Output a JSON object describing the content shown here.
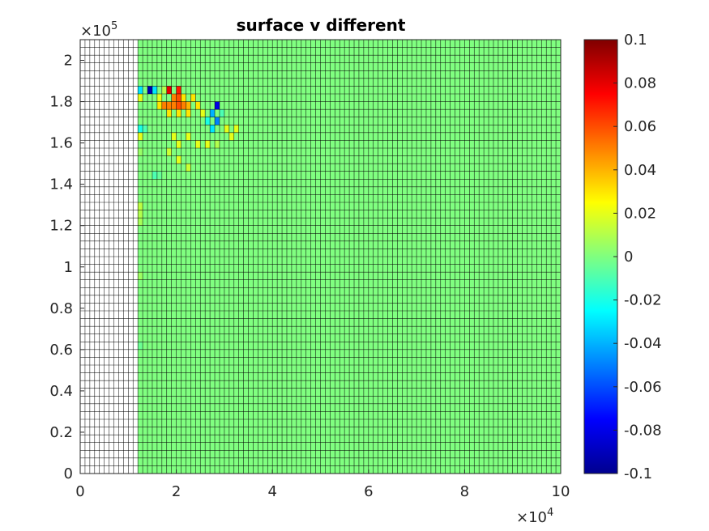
{
  "chart_data": {
    "type": "heatmap",
    "title": "surface v different",
    "xlabel": "",
    "ylabel": "",
    "x_exponent_label": "×10",
    "x_exponent": "4",
    "y_exponent_label": "×10",
    "y_exponent": "5",
    "xlim": [
      0,
      100000
    ],
    "ylim": [
      0,
      210000
    ],
    "x_ticks": [
      0,
      20000,
      40000,
      60000,
      80000,
      100000
    ],
    "x_tick_labels": [
      "0",
      "2",
      "4",
      "6",
      "8",
      "10"
    ],
    "y_ticks": [
      0,
      20000,
      40000,
      60000,
      80000,
      100000,
      120000,
      140000,
      160000,
      180000,
      200000
    ],
    "y_tick_labels": [
      "0",
      "0.2",
      "0.4",
      "0.6",
      "0.8",
      "1",
      "1.2",
      "1.4",
      "1.6",
      "1.8",
      "2"
    ],
    "grid": {
      "x_start": 0,
      "x_end": 100000,
      "x_cells": 100,
      "y_start": 0,
      "y_end": 210000,
      "y_cells": 56
    },
    "empty_region_x_max": 11000,
    "background_value": 0.0,
    "anomalies": [
      {
        "x": 14000,
        "y": 185000,
        "value": -0.09
      },
      {
        "x": 15000,
        "y": 187000,
        "value": -0.03
      },
      {
        "x": 16000,
        "y": 181000,
        "value": 0.02
      },
      {
        "x": 17000,
        "y": 186000,
        "value": 0.01
      },
      {
        "x": 18000,
        "y": 185000,
        "value": 0.08
      },
      {
        "x": 19000,
        "y": 181000,
        "value": 0.05
      },
      {
        "x": 20000,
        "y": 185000,
        "value": 0.07
      },
      {
        "x": 20000,
        "y": 181000,
        "value": 0.06
      },
      {
        "x": 20000,
        "y": 177000,
        "value": 0.06
      },
      {
        "x": 21000,
        "y": 181000,
        "value": 0.03
      },
      {
        "x": 22000,
        "y": 177000,
        "value": 0.04
      },
      {
        "x": 23000,
        "y": 181000,
        "value": 0.03
      },
      {
        "x": 24000,
        "y": 177000,
        "value": 0.03
      },
      {
        "x": 25000,
        "y": 174000,
        "value": 0.02
      },
      {
        "x": 26000,
        "y": 171000,
        "value": -0.02
      },
      {
        "x": 27000,
        "y": 168000,
        "value": -0.03
      },
      {
        "x": 27000,
        "y": 174000,
        "value": -0.04
      },
      {
        "x": 28000,
        "y": 177000,
        "value": -0.08
      },
      {
        "x": 28000,
        "y": 171000,
        "value": -0.05
      },
      {
        "x": 29000,
        "y": 174000,
        "value": -0.01
      },
      {
        "x": 30000,
        "y": 168000,
        "value": 0.02
      },
      {
        "x": 31000,
        "y": 164000,
        "value": 0.02
      },
      {
        "x": 32000,
        "y": 168000,
        "value": 0.02
      },
      {
        "x": 16000,
        "y": 177000,
        "value": 0.03
      },
      {
        "x": 17000,
        "y": 177000,
        "value": 0.05
      },
      {
        "x": 18000,
        "y": 177000,
        "value": 0.05
      },
      {
        "x": 19000,
        "y": 177000,
        "value": 0.05
      },
      {
        "x": 21000,
        "y": 177000,
        "value": 0.05
      },
      {
        "x": 22000,
        "y": 174000,
        "value": 0.03
      },
      {
        "x": 18000,
        "y": 174000,
        "value": 0.03
      },
      {
        "x": 20000,
        "y": 174000,
        "value": 0.03
      },
      {
        "x": 12000,
        "y": 168000,
        "value": -0.02
      },
      {
        "x": 12000,
        "y": 164000,
        "value": 0.02
      },
      {
        "x": 13000,
        "y": 168000,
        "value": -0.01
      },
      {
        "x": 12000,
        "y": 185000,
        "value": -0.03
      },
      {
        "x": 12000,
        "y": 181000,
        "value": 0.02
      },
      {
        "x": 19000,
        "y": 164000,
        "value": 0.02
      },
      {
        "x": 20000,
        "y": 161000,
        "value": 0.02
      },
      {
        "x": 22000,
        "y": 164000,
        "value": 0.02
      },
      {
        "x": 24000,
        "y": 161000,
        "value": 0.02
      },
      {
        "x": 26000,
        "y": 158000,
        "value": 0.02
      },
      {
        "x": 28000,
        "y": 161000,
        "value": 0.01
      },
      {
        "x": 18000,
        "y": 154000,
        "value": 0.015
      },
      {
        "x": 20000,
        "y": 151000,
        "value": 0.02
      },
      {
        "x": 22000,
        "y": 148000,
        "value": 0.015
      },
      {
        "x": 12000,
        "y": 155000,
        "value": 0.005
      },
      {
        "x": 15000,
        "y": 144000,
        "value": -0.01
      },
      {
        "x": 16000,
        "y": 144000,
        "value": -0.005
      },
      {
        "x": 12000,
        "y": 128000,
        "value": 0.012
      },
      {
        "x": 12000,
        "y": 124000,
        "value": 0.01
      },
      {
        "x": 12000,
        "y": 120000,
        "value": 0.008
      },
      {
        "x": 12000,
        "y": 95000,
        "value": 0.006
      },
      {
        "x": 12000,
        "y": 60000,
        "value": -0.004
      }
    ],
    "colorbar": {
      "colormap": "jet",
      "limits": [
        -0.1,
        0.1
      ],
      "ticks": [
        0.1,
        0.08,
        0.06,
        0.04,
        0.02,
        0,
        -0.02,
        -0.04,
        -0.06,
        -0.08,
        -0.1
      ],
      "tick_labels": [
        "0.1",
        "0.08",
        "0.06",
        "0.04",
        "0.02",
        "0",
        "-0.02",
        "-0.04",
        "-0.06",
        "-0.08",
        "-0.1"
      ]
    }
  }
}
